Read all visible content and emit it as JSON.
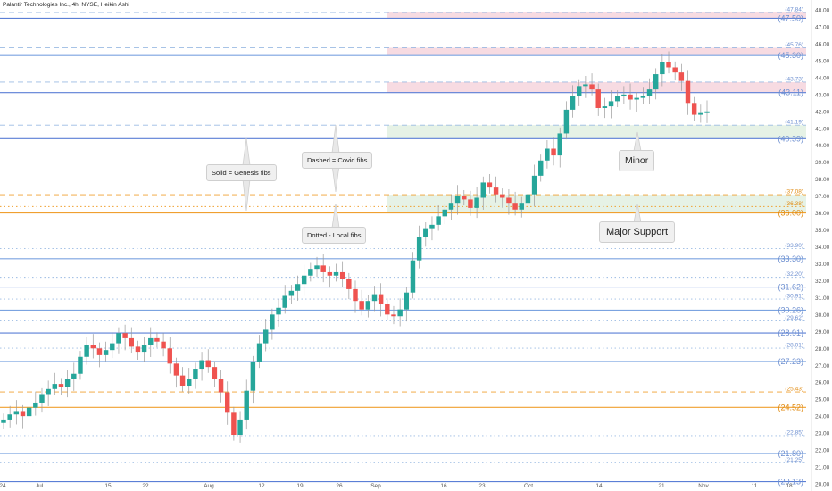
{
  "chart_data": {
    "type": "candlestick",
    "title": "Palantir Technologies Inc., 4h, NYSE, Heikin Ashi",
    "price_axis": {
      "min": 20.0,
      "max": 48.0,
      "ticks": [
        "20.00",
        "21.00",
        "22.00",
        "23.00",
        "24.00",
        "25.00",
        "26.00",
        "27.00",
        "28.00",
        "29.00",
        "30.00",
        "31.00",
        "32.00",
        "33.00",
        "34.00",
        "35.00",
        "36.00",
        "37.00",
        "38.00",
        "39.00",
        "40.00",
        "41.00",
        "42.00",
        "43.00",
        "44.00",
        "45.00",
        "46.00",
        "47.00",
        "48.00"
      ]
    },
    "time_axis": {
      "labels": [
        "24",
        "Jul",
        "15",
        "22",
        "Aug",
        "12",
        "19",
        "26",
        "Sep",
        "16",
        "23",
        "Oct",
        "14",
        "21",
        "Nov",
        "11",
        "18"
      ]
    },
    "fib_levels": [
      {
        "value": 47.5,
        "label": "(47.50)",
        "style": "solid",
        "color": "#5b7fd6"
      },
      {
        "value": 47.84,
        "label": "(47.84)",
        "style": "dashed",
        "color": "#9bbbe3"
      },
      {
        "value": 45.3,
        "label": "(45.30)",
        "style": "solid",
        "color": "#7ba3e0"
      },
      {
        "value": 45.76,
        "label": "(45.76)",
        "style": "dashed",
        "color": "#9bbbe3"
      },
      {
        "value": 43.11,
        "label": "(43.11)",
        "style": "solid",
        "color": "#5b7fd6"
      },
      {
        "value": 43.73,
        "label": "(43.73)",
        "style": "dashed",
        "color": "#9bbbe3"
      },
      {
        "value": 41.19,
        "label": "(41.19)",
        "style": "dashed",
        "color": "#9bbbe3"
      },
      {
        "value": 40.39,
        "label": "(40.39)",
        "style": "solid",
        "color": "#5b7fd6"
      },
      {
        "value": 37.08,
        "label": "(37.08)",
        "style": "dashed",
        "color": "#f0a030"
      },
      {
        "value": 36.38,
        "label": "(36.38)",
        "style": "dotted",
        "color": "#f0a030"
      },
      {
        "value": 36.0,
        "label": "(36.00)",
        "style": "solid",
        "color": "#f0a030"
      },
      {
        "value": 33.9,
        "label": "(33.90)",
        "style": "dotted",
        "color": "#9bbbe3"
      },
      {
        "value": 33.3,
        "label": "(33.30)",
        "style": "solid",
        "color": "#7ba3e0"
      },
      {
        "value": 32.2,
        "label": "(32.20)",
        "style": "dotted",
        "color": "#9bbbe3"
      },
      {
        "value": 31.62,
        "label": "(31.62)",
        "style": "solid",
        "color": "#5b7fd6"
      },
      {
        "value": 30.91,
        "label": "(30.91)",
        "style": "dotted",
        "color": "#9bbbe3"
      },
      {
        "value": 30.26,
        "label": "(30.26)",
        "style": "solid",
        "color": "#7ba3e0"
      },
      {
        "value": 29.62,
        "label": "(29.62)",
        "style": "dotted",
        "color": "#9bbbe3"
      },
      {
        "value": 28.91,
        "label": "(28.91)",
        "style": "solid",
        "color": "#5b7fd6"
      },
      {
        "value": 28.01,
        "label": "(28.01)",
        "style": "dotted",
        "color": "#9bbbe3"
      },
      {
        "value": 27.23,
        "label": "(27.23)",
        "style": "solid",
        "color": "#7ba3e0"
      },
      {
        "value": 25.43,
        "label": "(25.43)",
        "style": "dashed",
        "color": "#f0a030"
      },
      {
        "value": 24.52,
        "label": "(24.52)",
        "style": "solid",
        "color": "#f0a030"
      },
      {
        "value": 22.85,
        "label": "(22.85)",
        "style": "dotted",
        "color": "#9bbbe3"
      },
      {
        "value": 21.8,
        "label": "(21.80)",
        "style": "solid",
        "color": "#7ba3e0"
      },
      {
        "value": 21.25,
        "label": "(21.25)",
        "style": "dotted",
        "color": "#9bbbe3"
      },
      {
        "value": 20.13,
        "label": "(20.13)",
        "style": "solid",
        "color": "#5b7fd6"
      }
    ],
    "zones": [
      {
        "from": 47.5,
        "to": 47.84,
        "color": "#f7dbe2"
      },
      {
        "from": 45.3,
        "to": 45.76,
        "color": "#f7dbe2"
      },
      {
        "from": 43.11,
        "to": 43.73,
        "color": "#f7dbe2"
      },
      {
        "from": 40.39,
        "to": 41.19,
        "color": "#e6f2e6"
      },
      {
        "from": 36.0,
        "to": 37.08,
        "color": "#e6f2e6"
      }
    ],
    "prices": [
      23.8,
      24.1,
      24.3,
      24.0,
      24.5,
      24.8,
      25.3,
      25.6,
      25.9,
      25.7,
      26.2,
      26.5,
      27.5,
      28.2,
      28.0,
      27.6,
      27.9,
      28.3,
      28.9,
      28.6,
      28.1,
      27.8,
      28.2,
      28.6,
      28.4,
      28.0,
      27.1,
      26.4,
      25.8,
      26.2,
      26.8,
      27.3,
      26.9,
      26.2,
      25.4,
      24.2,
      22.9,
      23.8,
      25.5,
      27.2,
      28.3,
      29.1,
      30.0,
      30.4,
      31.1,
      31.4,
      31.8,
      32.3,
      32.7,
      32.9,
      32.5,
      32.3,
      32.5,
      32.1,
      31.5,
      30.8,
      30.3,
      30.8,
      31.2,
      30.6,
      30.0,
      29.9,
      30.3,
      31.3,
      33.2,
      34.6,
      35.1,
      35.3,
      35.8,
      36.2,
      36.6,
      37.0,
      36.8,
      36.3,
      36.9,
      37.8,
      37.5,
      37.1,
      36.9,
      36.6,
      36.2,
      36.6,
      37.1,
      38.2,
      39.1,
      39.8,
      39.4,
      40.7,
      42.1,
      42.9,
      43.5,
      43.6,
      43.3,
      42.2,
      42.3,
      42.6,
      42.9,
      43.0,
      42.7,
      42.8,
      42.9,
      43.3,
      44.2,
      44.9,
      44.6,
      44.3,
      43.8,
      42.5,
      41.8,
      41.9,
      42.0
    ],
    "annotations": {
      "solid_label": "Solid = Genesis fibs",
      "dashed_label": "Dashed = Covid fibs",
      "dotted_label": "Dotted - Local fibs",
      "minor_label": "Minor",
      "major_label": "Major Support"
    },
    "colors": {
      "up": "#26a69a",
      "down": "#ef5350",
      "axis_text": "#555555"
    }
  }
}
